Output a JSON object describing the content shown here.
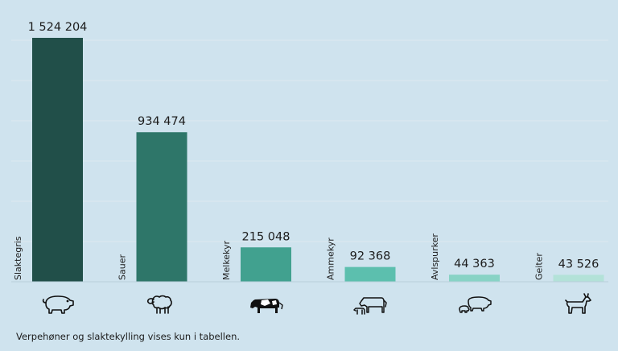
{
  "chart_data": {
    "type": "bar",
    "categories": [
      "Slaktegris",
      "Sauer",
      "Melkekyr",
      "Ammekyr",
      "Avlspurker",
      "Geiter"
    ],
    "values": [
      1524204,
      934474,
      215048,
      92368,
      44363,
      43526
    ],
    "value_labels": [
      "1 524 204",
      "934 474",
      "215 048",
      "92 368",
      "44 363",
      "43 526"
    ],
    "colors": [
      "#214f49",
      "#2e7669",
      "#41a18f",
      "#5cbfae",
      "#88d3c5",
      "#b3e2d8"
    ],
    "icons": [
      "pig-icon",
      "sheep-icon",
      "dairy-cow-icon",
      "cow-with-calf-icon",
      "sow-with-piglets-icon",
      "goat-icon"
    ],
    "ylim": [
      0,
      1524204
    ],
    "grid": true,
    "legend": "none"
  },
  "footnote": "Verpehøner og slaktekylling vises kun i tabellen."
}
